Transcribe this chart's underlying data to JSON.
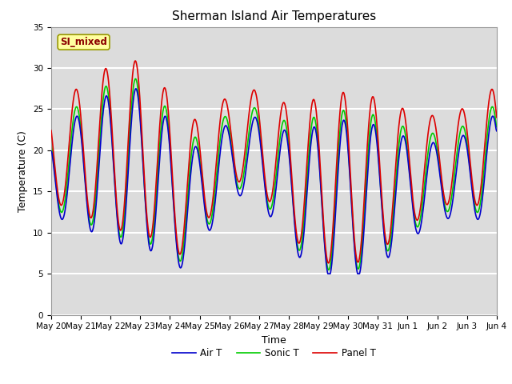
{
  "title": "Sherman Island Air Temperatures",
  "xlabel": "Time",
  "ylabel": "Temperature (C)",
  "ylim": [
    0,
    35
  ],
  "yticks": [
    0,
    5,
    10,
    15,
    20,
    25,
    30,
    35
  ],
  "annotation_text": "SI_mixed",
  "annotation_color": "#8B0000",
  "annotation_bg": "#FFFFA0",
  "bg_color": "#DCDCDC",
  "grid_color": "white",
  "line_panel_color": "#DD0000",
  "line_air_color": "#0000CC",
  "line_sonic_color": "#00CC00",
  "line_width": 1.2,
  "legend_labels": [
    "Panel T",
    "Air T",
    "Sonic T"
  ],
  "x_tick_labels": [
    "May 20",
    "May 21",
    "May 22",
    "May 23",
    "May 24",
    "May 25",
    "May 26",
    "May 27",
    "May 28",
    "May 29",
    "May 30",
    "May 31",
    "Jun 1",
    "Jun 2",
    "Jun 3",
    "Jun 4"
  ],
  "title_fontsize": 11,
  "axis_label_fontsize": 9,
  "tick_fontsize": 7.5
}
